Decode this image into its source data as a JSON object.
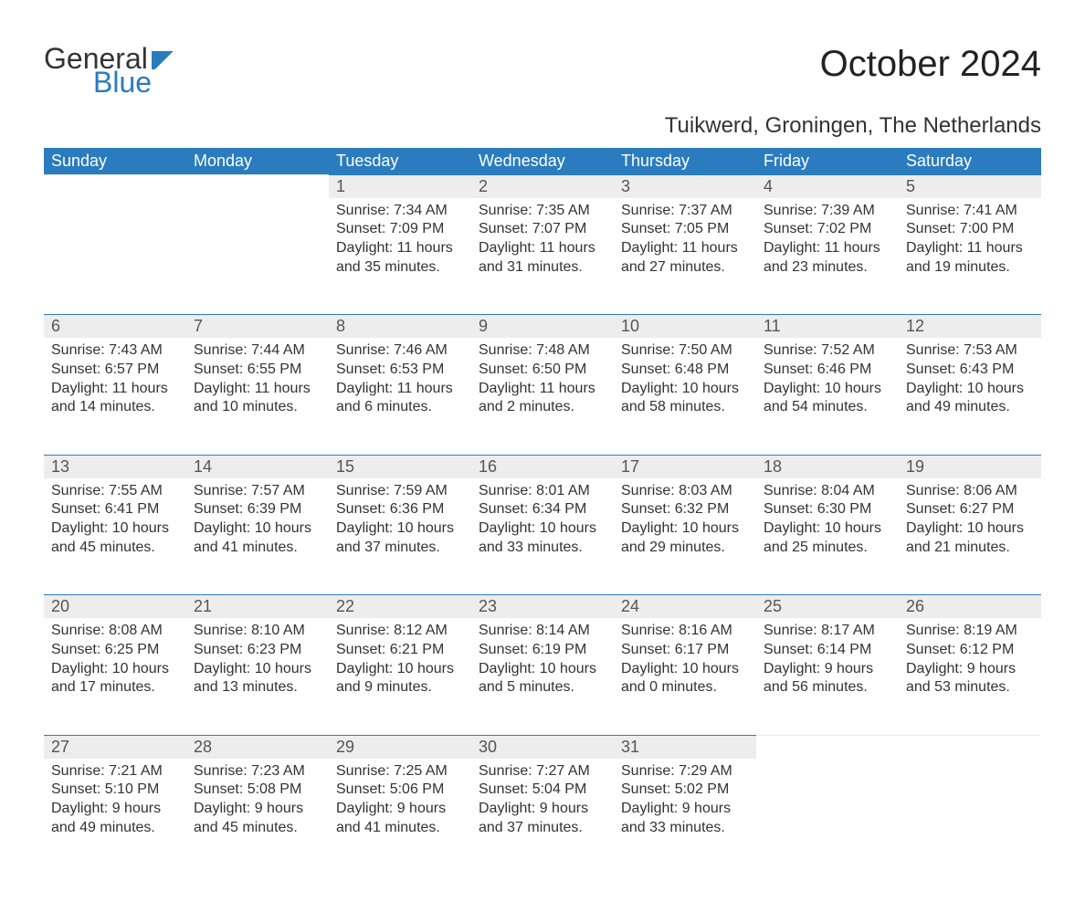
{
  "logo": {
    "part1": "General",
    "part2": "Blue"
  },
  "title": "October 2024",
  "location": "Tuikwerd, Groningen, The Netherlands",
  "day_headers": [
    "Sunday",
    "Monday",
    "Tuesday",
    "Wednesday",
    "Thursday",
    "Friday",
    "Saturday"
  ],
  "labels": {
    "sunrise": "Sunrise:",
    "sunset": "Sunset:",
    "daylight": "Daylight:"
  },
  "colors": {
    "header_bg": "#2b7bbf",
    "header_text": "#ffffff",
    "daynum_bg": "#ededed",
    "row_border": "#2b7bbf",
    "text": "#333333",
    "logo_blue": "#2b7bbf",
    "background": "#ffffff"
  },
  "typography": {
    "title_fontsize": 40,
    "location_fontsize": 24,
    "header_fontsize": 18,
    "daynum_fontsize": 18,
    "body_fontsize": 16,
    "logo_fontsize": 32,
    "font_family": "Arial"
  },
  "layout": {
    "columns": 7,
    "rows": 5,
    "first_day_column": 2
  },
  "weeks": [
    [
      null,
      null,
      {
        "n": "1",
        "sr": "7:34 AM",
        "ss": "7:09 PM",
        "dl": "11 hours and 35 minutes."
      },
      {
        "n": "2",
        "sr": "7:35 AM",
        "ss": "7:07 PM",
        "dl": "11 hours and 31 minutes."
      },
      {
        "n": "3",
        "sr": "7:37 AM",
        "ss": "7:05 PM",
        "dl": "11 hours and 27 minutes."
      },
      {
        "n": "4",
        "sr": "7:39 AM",
        "ss": "7:02 PM",
        "dl": "11 hours and 23 minutes."
      },
      {
        "n": "5",
        "sr": "7:41 AM",
        "ss": "7:00 PM",
        "dl": "11 hours and 19 minutes."
      }
    ],
    [
      {
        "n": "6",
        "sr": "7:43 AM",
        "ss": "6:57 PM",
        "dl": "11 hours and 14 minutes."
      },
      {
        "n": "7",
        "sr": "7:44 AM",
        "ss": "6:55 PM",
        "dl": "11 hours and 10 minutes."
      },
      {
        "n": "8",
        "sr": "7:46 AM",
        "ss": "6:53 PM",
        "dl": "11 hours and 6 minutes."
      },
      {
        "n": "9",
        "sr": "7:48 AM",
        "ss": "6:50 PM",
        "dl": "11 hours and 2 minutes."
      },
      {
        "n": "10",
        "sr": "7:50 AM",
        "ss": "6:48 PM",
        "dl": "10 hours and 58 minutes."
      },
      {
        "n": "11",
        "sr": "7:52 AM",
        "ss": "6:46 PM",
        "dl": "10 hours and 54 minutes."
      },
      {
        "n": "12",
        "sr": "7:53 AM",
        "ss": "6:43 PM",
        "dl": "10 hours and 49 minutes."
      }
    ],
    [
      {
        "n": "13",
        "sr": "7:55 AM",
        "ss": "6:41 PM",
        "dl": "10 hours and 45 minutes."
      },
      {
        "n": "14",
        "sr": "7:57 AM",
        "ss": "6:39 PM",
        "dl": "10 hours and 41 minutes."
      },
      {
        "n": "15",
        "sr": "7:59 AM",
        "ss": "6:36 PM",
        "dl": "10 hours and 37 minutes."
      },
      {
        "n": "16",
        "sr": "8:01 AM",
        "ss": "6:34 PM",
        "dl": "10 hours and 33 minutes."
      },
      {
        "n": "17",
        "sr": "8:03 AM",
        "ss": "6:32 PM",
        "dl": "10 hours and 29 minutes."
      },
      {
        "n": "18",
        "sr": "8:04 AM",
        "ss": "6:30 PM",
        "dl": "10 hours and 25 minutes."
      },
      {
        "n": "19",
        "sr": "8:06 AM",
        "ss": "6:27 PM",
        "dl": "10 hours and 21 minutes."
      }
    ],
    [
      {
        "n": "20",
        "sr": "8:08 AM",
        "ss": "6:25 PM",
        "dl": "10 hours and 17 minutes."
      },
      {
        "n": "21",
        "sr": "8:10 AM",
        "ss": "6:23 PM",
        "dl": "10 hours and 13 minutes."
      },
      {
        "n": "22",
        "sr": "8:12 AM",
        "ss": "6:21 PM",
        "dl": "10 hours and 9 minutes."
      },
      {
        "n": "23",
        "sr": "8:14 AM",
        "ss": "6:19 PM",
        "dl": "10 hours and 5 minutes."
      },
      {
        "n": "24",
        "sr": "8:16 AM",
        "ss": "6:17 PM",
        "dl": "10 hours and 0 minutes."
      },
      {
        "n": "25",
        "sr": "8:17 AM",
        "ss": "6:14 PM",
        "dl": "9 hours and 56 minutes."
      },
      {
        "n": "26",
        "sr": "8:19 AM",
        "ss": "6:12 PM",
        "dl": "9 hours and 53 minutes."
      }
    ],
    [
      {
        "n": "27",
        "sr": "7:21 AM",
        "ss": "5:10 PM",
        "dl": "9 hours and 49 minutes."
      },
      {
        "n": "28",
        "sr": "7:23 AM",
        "ss": "5:08 PM",
        "dl": "9 hours and 45 minutes."
      },
      {
        "n": "29",
        "sr": "7:25 AM",
        "ss": "5:06 PM",
        "dl": "9 hours and 41 minutes."
      },
      {
        "n": "30",
        "sr": "7:27 AM",
        "ss": "5:04 PM",
        "dl": "9 hours and 37 minutes."
      },
      {
        "n": "31",
        "sr": "7:29 AM",
        "ss": "5:02 PM",
        "dl": "9 hours and 33 minutes."
      },
      null,
      null
    ]
  ]
}
